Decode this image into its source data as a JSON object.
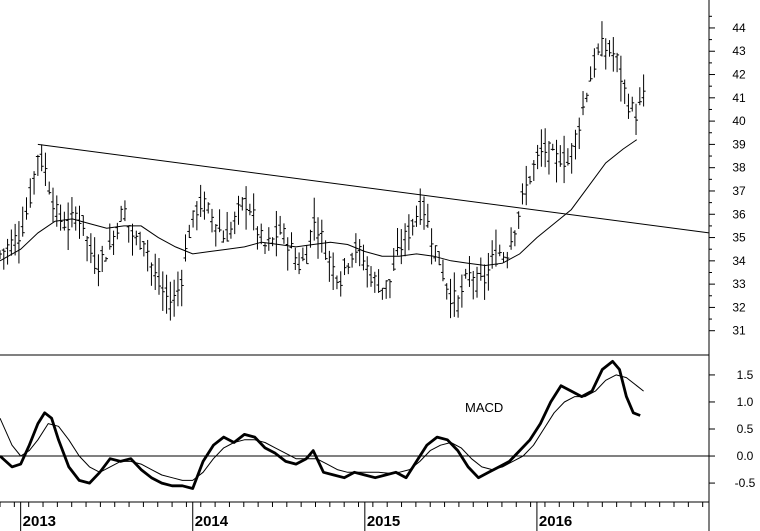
{
  "chart_data": [
    {
      "type": "ohlc",
      "y_ticks": [
        31,
        32,
        33,
        34,
        35,
        36,
        37,
        38,
        39,
        40,
        41,
        42,
        43,
        44
      ],
      "ylim": [
        30.0,
        45.2
      ],
      "x_ticks": [
        {
          "label": "2013",
          "t": 2013.0
        },
        {
          "label": "2014",
          "t": 2014.0
        },
        {
          "label": "2015",
          "t": 2015.0
        },
        {
          "label": "2016",
          "t": 2016.0
        }
      ],
      "xlim": [
        2012.88,
        2017.0
      ],
      "close_path": [
        [
          2012.88,
          34.3
        ],
        [
          2012.95,
          34.8
        ],
        [
          2013.0,
          35.2
        ],
        [
          2013.05,
          36.5
        ],
        [
          2013.1,
          38.6
        ],
        [
          2013.14,
          38.0
        ],
        [
          2013.18,
          36.8
        ],
        [
          2013.22,
          35.8
        ],
        [
          2013.28,
          35.5
        ],
        [
          2013.32,
          36.0
        ],
        [
          2013.36,
          35.7
        ],
        [
          2013.4,
          34.5
        ],
        [
          2013.44,
          33.8
        ],
        [
          2013.48,
          34.2
        ],
        [
          2013.52,
          34.6
        ],
        [
          2013.56,
          35.5
        ],
        [
          2013.6,
          36.3
        ],
        [
          2013.64,
          35.2
        ],
        [
          2013.68,
          34.8
        ],
        [
          2013.72,
          35.0
        ],
        [
          2013.76,
          33.8
        ],
        [
          2013.8,
          33.0
        ],
        [
          2013.84,
          32.5
        ],
        [
          2013.88,
          32.2
        ],
        [
          2013.93,
          33.0
        ],
        [
          2013.97,
          35.0
        ],
        [
          2014.02,
          36.2
        ],
        [
          2014.06,
          36.5
        ],
        [
          2014.1,
          36.0
        ],
        [
          2014.14,
          35.6
        ],
        [
          2014.18,
          35.0
        ],
        [
          2014.22,
          35.3
        ],
        [
          2014.26,
          36.0
        ],
        [
          2014.3,
          36.6
        ],
        [
          2014.34,
          36.2
        ],
        [
          2014.38,
          35.2
        ],
        [
          2014.42,
          34.6
        ],
        [
          2014.46,
          34.8
        ],
        [
          2014.5,
          35.3
        ],
        [
          2014.54,
          35.0
        ],
        [
          2014.58,
          34.4
        ],
        [
          2014.62,
          33.8
        ],
        [
          2014.66,
          34.2
        ],
        [
          2014.7,
          35.8
        ],
        [
          2014.74,
          35.2
        ],
        [
          2014.78,
          34.3
        ],
        [
          2014.82,
          33.6
        ],
        [
          2014.86,
          33.3
        ],
        [
          2014.9,
          34.0
        ],
        [
          2014.94,
          34.6
        ],
        [
          2014.98,
          34.2
        ],
        [
          2015.02,
          33.6
        ],
        [
          2015.06,
          33.1
        ],
        [
          2015.1,
          32.9
        ],
        [
          2015.14,
          33.0
        ],
        [
          2015.18,
          34.0
        ],
        [
          2015.22,
          34.8
        ],
        [
          2015.26,
          35.3
        ],
        [
          2015.3,
          36.0
        ],
        [
          2015.34,
          36.3
        ],
        [
          2015.38,
          35.2
        ],
        [
          2015.42,
          34.3
        ],
        [
          2015.46,
          33.3
        ],
        [
          2015.5,
          32.5
        ],
        [
          2015.54,
          32.2
        ],
        [
          2015.58,
          33.0
        ],
        [
          2015.62,
          33.5
        ],
        [
          2015.66,
          33.0
        ],
        [
          2015.7,
          33.2
        ],
        [
          2015.74,
          34.0
        ],
        [
          2015.78,
          34.4
        ],
        [
          2015.82,
          34.2
        ],
        [
          2015.86,
          35.2
        ],
        [
          2015.9,
          36.2
        ],
        [
          2015.94,
          37.2
        ],
        [
          2015.98,
          38.0
        ],
        [
          2016.02,
          38.6
        ],
        [
          2016.06,
          38.8
        ],
        [
          2016.1,
          38.3
        ],
        [
          2016.14,
          38.5
        ],
        [
          2016.18,
          38.2
        ],
        [
          2016.22,
          39.2
        ],
        [
          2016.26,
          40.3
        ],
        [
          2016.3,
          41.6
        ],
        [
          2016.34,
          42.6
        ],
        [
          2016.38,
          43.2
        ],
        [
          2016.42,
          43.0
        ],
        [
          2016.46,
          42.8
        ],
        [
          2016.5,
          41.5
        ],
        [
          2016.54,
          40.6
        ],
        [
          2016.58,
          40.3
        ],
        [
          2016.62,
          41.0
        ]
      ],
      "moving_average": [
        [
          2012.88,
          34.0
        ],
        [
          2013.0,
          34.5
        ],
        [
          2013.1,
          35.2
        ],
        [
          2013.2,
          35.7
        ],
        [
          2013.3,
          35.8
        ],
        [
          2013.4,
          35.6
        ],
        [
          2013.5,
          35.4
        ],
        [
          2013.6,
          35.5
        ],
        [
          2013.7,
          35.5
        ],
        [
          2013.8,
          35.0
        ],
        [
          2013.9,
          34.6
        ],
        [
          2014.0,
          34.3
        ],
        [
          2014.1,
          34.4
        ],
        [
          2014.2,
          34.5
        ],
        [
          2014.3,
          34.6
        ],
        [
          2014.4,
          34.8
        ],
        [
          2014.5,
          34.7
        ],
        [
          2014.6,
          34.6
        ],
        [
          2014.7,
          34.7
        ],
        [
          2014.8,
          34.8
        ],
        [
          2014.9,
          34.7
        ],
        [
          2015.0,
          34.4
        ],
        [
          2015.1,
          34.2
        ],
        [
          2015.2,
          34.2
        ],
        [
          2015.3,
          34.3
        ],
        [
          2015.4,
          34.2
        ],
        [
          2015.5,
          34.0
        ],
        [
          2015.6,
          33.9
        ],
        [
          2015.7,
          33.8
        ],
        [
          2015.8,
          33.9
        ],
        [
          2015.9,
          34.3
        ],
        [
          2016.0,
          35.0
        ],
        [
          2016.1,
          35.6
        ],
        [
          2016.2,
          36.2
        ],
        [
          2016.3,
          37.2
        ],
        [
          2016.4,
          38.2
        ],
        [
          2016.5,
          38.8
        ],
        [
          2016.58,
          39.2
        ]
      ],
      "trendline": {
        "from": [
          2013.1,
          39.0
        ],
        "to": [
          2017.0,
          35.2
        ]
      }
    },
    {
      "type": "line",
      "annotation": "MACD",
      "y_ticks": [
        -0.5,
        0.0,
        0.5,
        1.0,
        1.5
      ],
      "y_tick_labels": [
        "-0.5",
        "0.0",
        "0.5",
        "1.0",
        "1.5"
      ],
      "ylim": [
        -0.85,
        1.85
      ],
      "zero_line": 0.0,
      "series": [
        {
          "style": "thick",
          "values": [
            [
              2012.88,
              0.0
            ],
            [
              2012.95,
              -0.2
            ],
            [
              2013.0,
              -0.15
            ],
            [
              2013.05,
              0.2
            ],
            [
              2013.1,
              0.6
            ],
            [
              2013.14,
              0.8
            ],
            [
              2013.18,
              0.7
            ],
            [
              2013.22,
              0.3
            ],
            [
              2013.28,
              -0.2
            ],
            [
              2013.34,
              -0.45
            ],
            [
              2013.4,
              -0.5
            ],
            [
              2013.46,
              -0.3
            ],
            [
              2013.52,
              -0.05
            ],
            [
              2013.58,
              -0.1
            ],
            [
              2013.64,
              -0.05
            ],
            [
              2013.7,
              -0.25
            ],
            [
              2013.76,
              -0.4
            ],
            [
              2013.82,
              -0.5
            ],
            [
              2013.88,
              -0.55
            ],
            [
              2013.94,
              -0.55
            ],
            [
              2014.0,
              -0.6
            ],
            [
              2014.06,
              -0.1
            ],
            [
              2014.12,
              0.2
            ],
            [
              2014.18,
              0.35
            ],
            [
              2014.24,
              0.25
            ],
            [
              2014.3,
              0.4
            ],
            [
              2014.36,
              0.35
            ],
            [
              2014.42,
              0.15
            ],
            [
              2014.48,
              0.05
            ],
            [
              2014.54,
              -0.1
            ],
            [
              2014.6,
              -0.15
            ],
            [
              2014.66,
              -0.05
            ],
            [
              2014.7,
              0.1
            ],
            [
              2014.76,
              -0.3
            ],
            [
              2014.82,
              -0.35
            ],
            [
              2014.88,
              -0.4
            ],
            [
              2014.94,
              -0.3
            ],
            [
              2015.0,
              -0.35
            ],
            [
              2015.06,
              -0.4
            ],
            [
              2015.12,
              -0.35
            ],
            [
              2015.18,
              -0.3
            ],
            [
              2015.24,
              -0.4
            ],
            [
              2015.3,
              -0.1
            ],
            [
              2015.36,
              0.2
            ],
            [
              2015.42,
              0.35
            ],
            [
              2015.48,
              0.3
            ],
            [
              2015.54,
              0.1
            ],
            [
              2015.6,
              -0.2
            ],
            [
              2015.66,
              -0.4
            ],
            [
              2015.72,
              -0.3
            ],
            [
              2015.78,
              -0.2
            ],
            [
              2015.84,
              -0.1
            ],
            [
              2015.9,
              0.1
            ],
            [
              2015.96,
              0.3
            ],
            [
              2016.02,
              0.6
            ],
            [
              2016.08,
              1.0
            ],
            [
              2016.14,
              1.3
            ],
            [
              2016.2,
              1.2
            ],
            [
              2016.26,
              1.1
            ],
            [
              2016.32,
              1.2
            ],
            [
              2016.38,
              1.6
            ],
            [
              2016.44,
              1.75
            ],
            [
              2016.48,
              1.6
            ],
            [
              2016.52,
              1.1
            ],
            [
              2016.56,
              0.8
            ],
            [
              2016.6,
              0.75
            ]
          ]
        },
        {
          "style": "thin",
          "values": [
            [
              2012.88,
              0.7
            ],
            [
              2012.95,
              0.2
            ],
            [
              2013.0,
              0.0
            ],
            [
              2013.05,
              0.1
            ],
            [
              2013.1,
              0.3
            ],
            [
              2013.16,
              0.6
            ],
            [
              2013.22,
              0.55
            ],
            [
              2013.28,
              0.3
            ],
            [
              2013.34,
              0.0
            ],
            [
              2013.4,
              -0.2
            ],
            [
              2013.46,
              -0.3
            ],
            [
              2013.52,
              -0.2
            ],
            [
              2013.58,
              -0.1
            ],
            [
              2013.64,
              -0.1
            ],
            [
              2013.7,
              -0.15
            ],
            [
              2013.76,
              -0.25
            ],
            [
              2013.82,
              -0.35
            ],
            [
              2013.88,
              -0.4
            ],
            [
              2013.94,
              -0.45
            ],
            [
              2014.0,
              -0.45
            ],
            [
              2014.06,
              -0.3
            ],
            [
              2014.12,
              -0.05
            ],
            [
              2014.18,
              0.15
            ],
            [
              2014.24,
              0.25
            ],
            [
              2014.3,
              0.3
            ],
            [
              2014.36,
              0.3
            ],
            [
              2014.42,
              0.25
            ],
            [
              2014.48,
              0.15
            ],
            [
              2014.54,
              0.05
            ],
            [
              2014.6,
              -0.05
            ],
            [
              2014.66,
              -0.05
            ],
            [
              2014.72,
              -0.05
            ],
            [
              2014.78,
              -0.15
            ],
            [
              2014.84,
              -0.25
            ],
            [
              2014.9,
              -0.3
            ],
            [
              2014.96,
              -0.3
            ],
            [
              2015.02,
              -0.3
            ],
            [
              2015.08,
              -0.3
            ],
            [
              2015.14,
              -0.32
            ],
            [
              2015.2,
              -0.3
            ],
            [
              2015.26,
              -0.25
            ],
            [
              2015.32,
              -0.1
            ],
            [
              2015.38,
              0.1
            ],
            [
              2015.44,
              0.2
            ],
            [
              2015.5,
              0.25
            ],
            [
              2015.56,
              0.15
            ],
            [
              2015.62,
              -0.05
            ],
            [
              2015.68,
              -0.2
            ],
            [
              2015.74,
              -0.25
            ],
            [
              2015.8,
              -0.2
            ],
            [
              2015.86,
              -0.1
            ],
            [
              2015.92,
              0.0
            ],
            [
              2015.98,
              0.2
            ],
            [
              2016.04,
              0.5
            ],
            [
              2016.1,
              0.8
            ],
            [
              2016.16,
              1.0
            ],
            [
              2016.22,
              1.1
            ],
            [
              2016.28,
              1.1
            ],
            [
              2016.34,
              1.2
            ],
            [
              2016.4,
              1.4
            ],
            [
              2016.46,
              1.5
            ],
            [
              2016.52,
              1.45
            ],
            [
              2016.58,
              1.3
            ],
            [
              2016.62,
              1.2
            ]
          ]
        }
      ]
    }
  ]
}
